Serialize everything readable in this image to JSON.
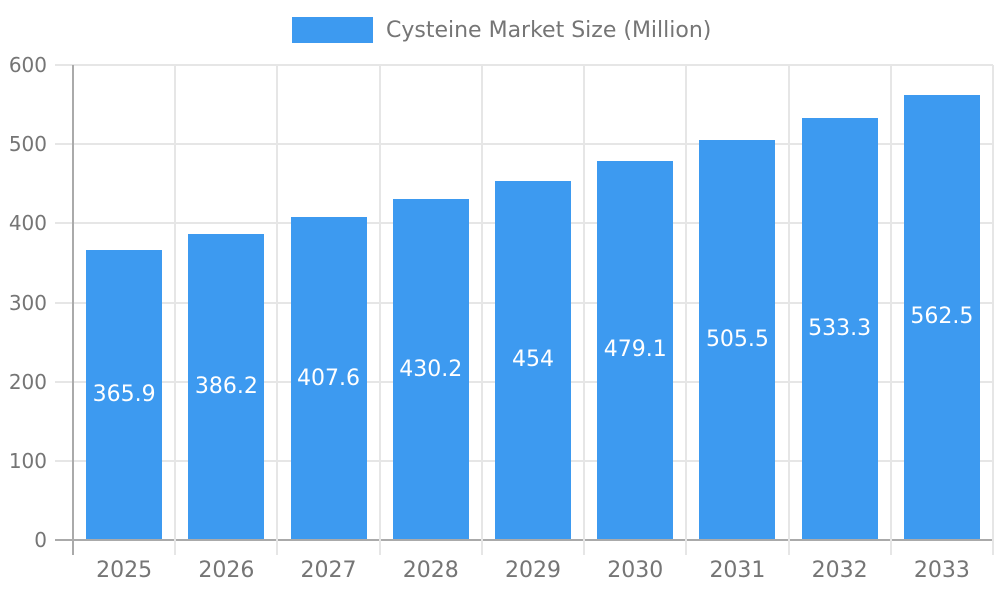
{
  "chart_data": {
    "type": "bar",
    "title": "Cysteine Market Size (Million)",
    "categories": [
      "2025",
      "2026",
      "2027",
      "2028",
      "2029",
      "2030",
      "2031",
      "2032",
      "2033"
    ],
    "series": [
      {
        "name": "Cysteine Market Size (Million)",
        "values": [
          365.9,
          386.2,
          407.6,
          430.2,
          454,
          479.1,
          505.5,
          533.3,
          562.5
        ]
      }
    ],
    "xlabel": "",
    "ylabel": "",
    "ylim": [
      0,
      600
    ],
    "yticks": [
      0,
      100,
      200,
      300,
      400,
      500,
      600
    ],
    "grid": true,
    "legend_position": "top",
    "value_labels_inside_bars": true,
    "colors": {
      "bar": "#3d9af0",
      "grid": "#e6e6e6",
      "axis": "#aaaaaa",
      "tick_text": "#757575",
      "value_text": "#ffffff"
    }
  }
}
